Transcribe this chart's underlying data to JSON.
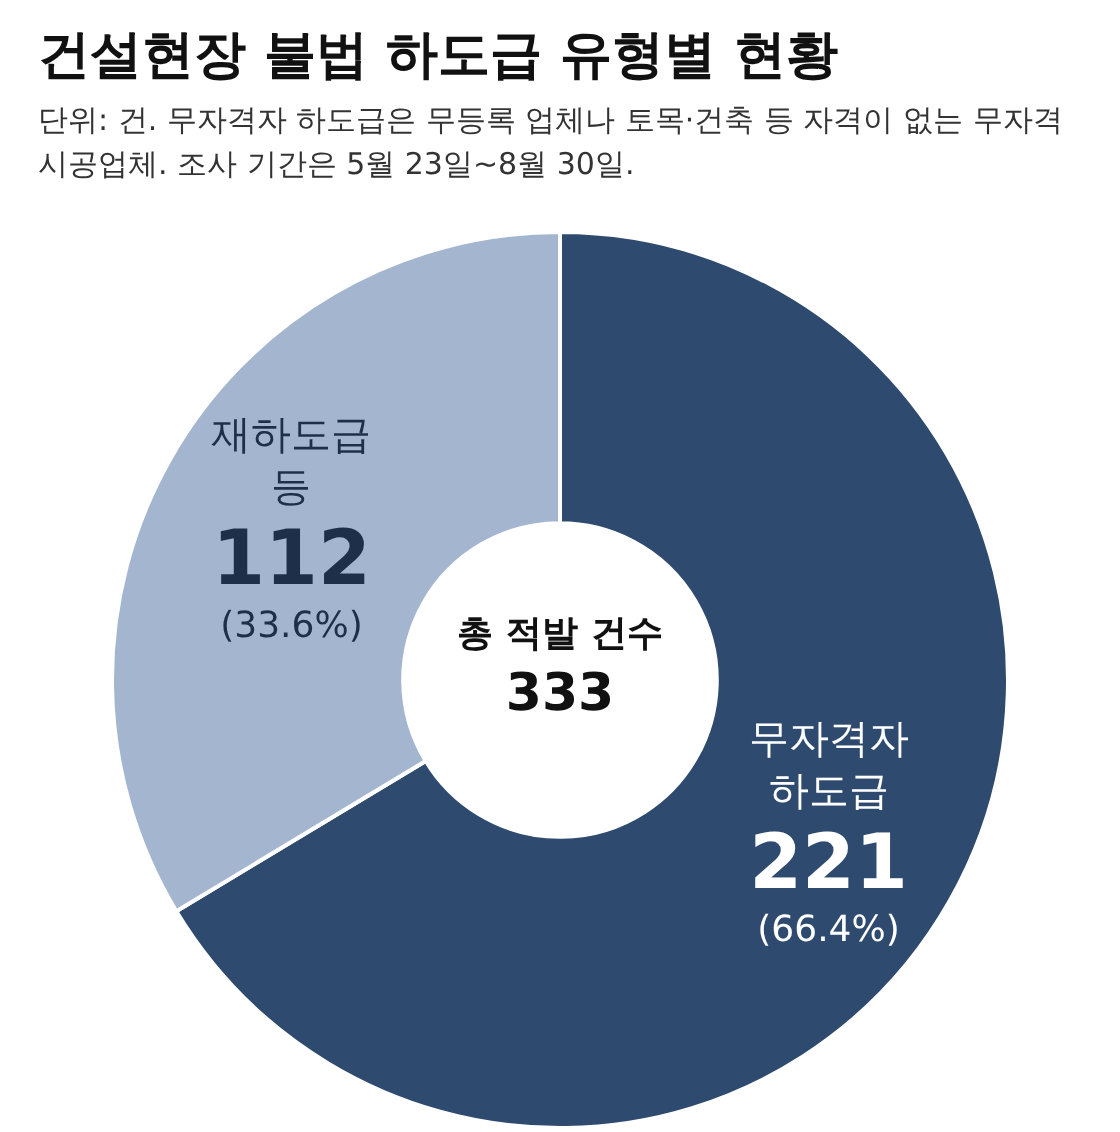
{
  "chart_data": {
    "type": "donut",
    "title": "건설현장 불법 하도급 유형별 현황",
    "subtitle": "단위: 건. 무자격자 하도급은 무등록 업체나 토목·건축 등 자격이 없는 무자격 시공업체. 조사 기간은 5월 23일~8월 30일.",
    "categories": [
      "무자격자 하도급",
      "재하도급 등"
    ],
    "values": [
      221,
      112
    ],
    "colors": [
      "#2e4a6f",
      "#a4b5cf"
    ],
    "value_labels": [
      "221 (66.4%)",
      "112 (33.6%)"
    ],
    "annotations": [
      "총 적발 건수\n333"
    ],
    "legend": false
  }
}
